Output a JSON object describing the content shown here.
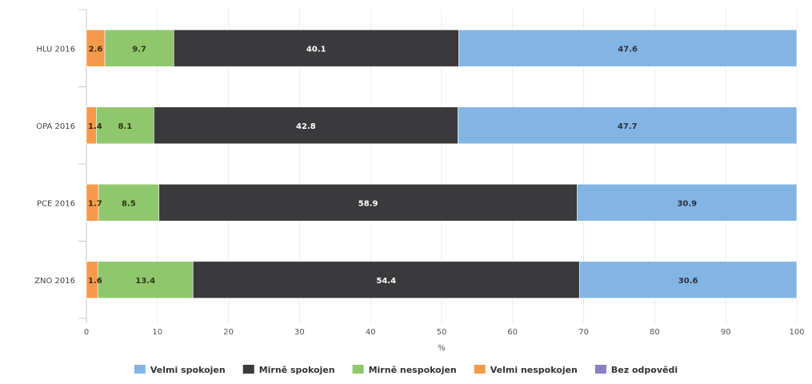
{
  "chart_data": {
    "type": "bar",
    "orientation": "horizontal",
    "stacked": true,
    "title": "",
    "xlabel": "%",
    "ylabel": "",
    "xlim": [
      0,
      100
    ],
    "x_ticks": [
      "0",
      "10",
      "20",
      "30",
      "40",
      "50",
      "60",
      "70",
      "80",
      "90",
      "100"
    ],
    "categories": [
      "HLU 2016",
      "OPA 2016",
      "PCE 2016",
      "ZNO 2016"
    ],
    "series": [
      {
        "name": "Velmi nespokojen",
        "color": "#f59a4b",
        "label_color": "#3a2a10",
        "values": [
          2.6,
          1.4,
          1.7,
          1.6
        ]
      },
      {
        "name": "Mirně nespokojen",
        "color": "#90c76d",
        "label_color": "#2a3a10",
        "values": [
          9.7,
          8.1,
          8.5,
          13.4
        ]
      },
      {
        "name": "Mirně spokojen",
        "color": "#3a3a3c",
        "label_color": "#ffffff",
        "values": [
          40.1,
          42.8,
          58.9,
          54.4
        ]
      },
      {
        "name": "Velmi spokojen",
        "color": "#82b5e3",
        "label_color": "#2a3040",
        "values": [
          47.6,
          47.7,
          30.9,
          30.6
        ]
      }
    ],
    "legend": {
      "placement": "bottom",
      "entries": [
        {
          "name": "Velmi spokojen",
          "color": "#82b5e3"
        },
        {
          "name": "Mirně spokojen",
          "color": "#3a3a3c"
        },
        {
          "name": "Mirně nespokojen",
          "color": "#90c76d"
        },
        {
          "name": "Velmi nespokojen",
          "color": "#f59a4b"
        },
        {
          "name": "Bez odpovědi",
          "color": "#8a7fc2"
        }
      ]
    },
    "grid": true
  }
}
